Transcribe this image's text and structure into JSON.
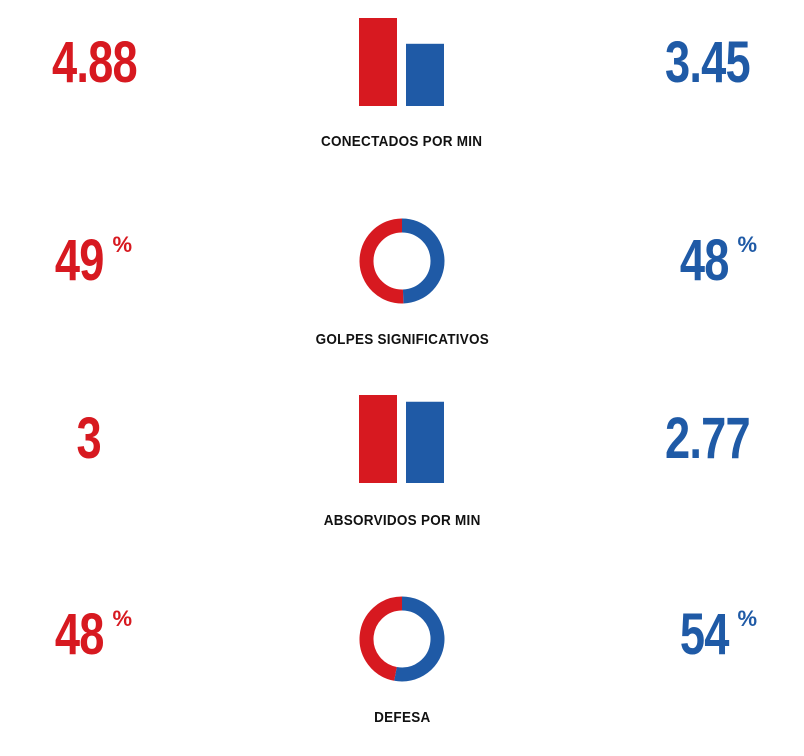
{
  "colors": {
    "red": "#d71920",
    "blue": "#1f5aa6"
  },
  "chart_data": [
    {
      "type": "bar",
      "title": "CONECTADOS POR MIN",
      "series": [
        {
          "values": [
            4.88
          ]
        },
        {
          "values": [
            3.45
          ]
        }
      ],
      "display": {
        "left": "4.88",
        "right": "3.45"
      }
    },
    {
      "type": "pie",
      "title": "GOLPES SIGNIFICATIVOS",
      "series": [
        {
          "values": [
            49
          ]
        },
        {
          "values": [
            48
          ]
        }
      ],
      "unit": "%",
      "display": {
        "left": "49",
        "right": "48"
      }
    },
    {
      "type": "bar",
      "title": "ABSORVIDOS POR MIN",
      "series": [
        {
          "values": [
            3
          ]
        },
        {
          "values": [
            2.77
          ]
        }
      ],
      "display": {
        "left": "3",
        "right": "2.77"
      }
    },
    {
      "type": "pie",
      "title": "DEFESA",
      "series": [
        {
          "values": [
            48
          ]
        },
        {
          "values": [
            54
          ]
        }
      ],
      "unit": "%",
      "display": {
        "left": "48",
        "right": "54"
      }
    }
  ]
}
